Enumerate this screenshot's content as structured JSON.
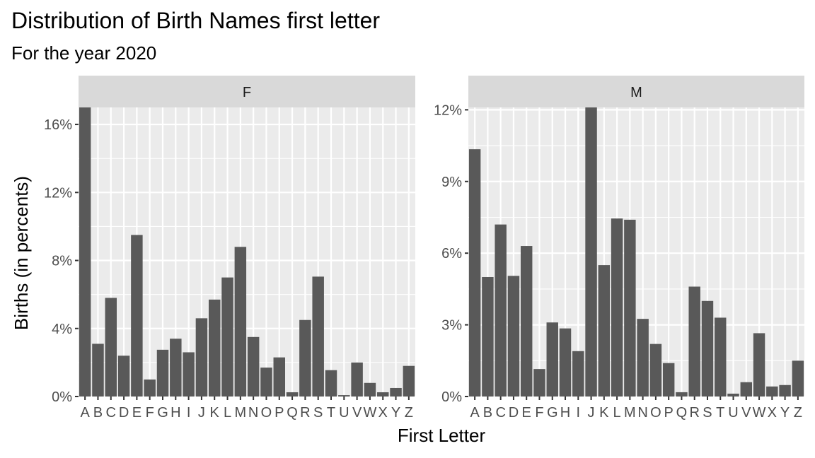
{
  "chart_data": {
    "type": "bar",
    "title": "Distribution of Birth Names first letter",
    "subtitle": "For the year 2020",
    "xlabel": "First Letter",
    "ylabel": "Births (in percents)",
    "categories": [
      "A",
      "B",
      "C",
      "D",
      "E",
      "F",
      "G",
      "H",
      "I",
      "J",
      "K",
      "L",
      "M",
      "N",
      "O",
      "P",
      "Q",
      "R",
      "S",
      "T",
      "U",
      "V",
      "W",
      "X",
      "Y",
      "Z"
    ],
    "panels": [
      {
        "name": "F",
        "ylim": [
          0,
          17.0
        ],
        "yticks": [
          0,
          4,
          8,
          12,
          16
        ],
        "ytick_labels": [
          "0%",
          "4%",
          "8%",
          "12%",
          "16%"
        ],
        "values": [
          17.1,
          3.1,
          5.8,
          2.4,
          9.5,
          1.0,
          2.75,
          3.4,
          2.6,
          4.6,
          5.7,
          7.0,
          8.8,
          3.5,
          1.7,
          2.3,
          0.25,
          4.5,
          7.05,
          1.55,
          0.08,
          2.0,
          0.8,
          0.25,
          0.5,
          1.8
        ]
      },
      {
        "name": "M",
        "ylim": [
          0,
          12.1
        ],
        "yticks": [
          0,
          3,
          6,
          9,
          12
        ],
        "ytick_labels": [
          "0%",
          "3%",
          "6%",
          "9%",
          "12%"
        ],
        "values": [
          10.35,
          5.0,
          7.2,
          5.05,
          6.3,
          1.15,
          3.1,
          2.85,
          1.9,
          12.1,
          5.5,
          7.45,
          7.4,
          3.25,
          2.2,
          1.4,
          0.18,
          4.6,
          4.0,
          3.3,
          0.12,
          0.6,
          2.65,
          0.42,
          0.48,
          1.5
        ]
      }
    ],
    "grid": true,
    "legend": "none",
    "colors": {
      "bar": "#595959",
      "panel_bg": "#ebebeb",
      "strip_bg": "#d9d9d9",
      "grid": "#ffffff"
    }
  }
}
